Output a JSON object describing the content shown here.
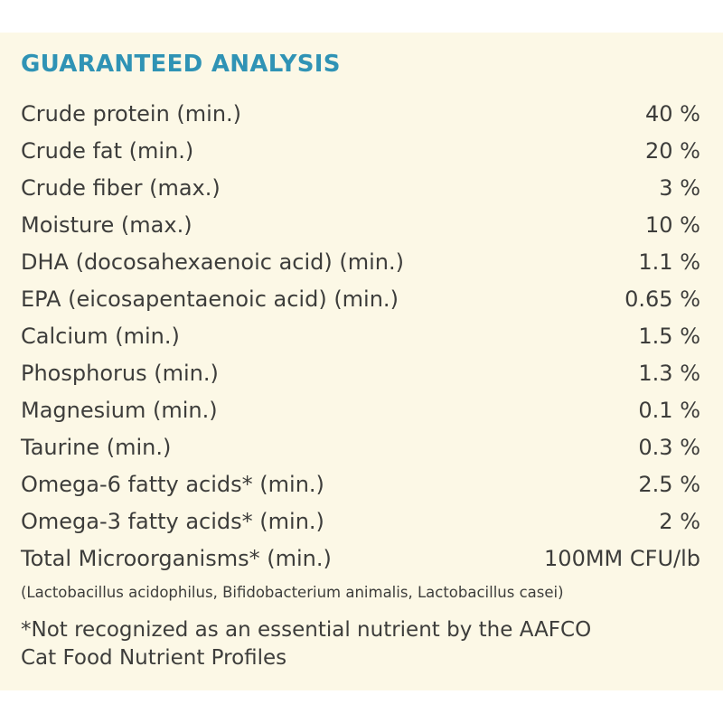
{
  "title": "GUARANTEED ANALYSIS",
  "rows": [
    {
      "nutrient": "Crude protein (min.)",
      "amount": "40 %"
    },
    {
      "nutrient": "Crude fat (min.)",
      "amount": "20 %"
    },
    {
      "nutrient": "Crude fiber (max.)",
      "amount": "3 %"
    },
    {
      "nutrient": "Moisture (max.)",
      "amount": "10 %"
    },
    {
      "nutrient": "DHA (docosahexaenoic acid) (min.)",
      "amount": "1.1 %"
    },
    {
      "nutrient": "EPA (eicosapentaenoic acid) (min.)",
      "amount": "0.65 %"
    },
    {
      "nutrient": "Calcium (min.)",
      "amount": "1.5 %"
    },
    {
      "nutrient": "Phosphorus (min.)",
      "amount": "1.3 %"
    },
    {
      "nutrient": "Magnesium (min.)",
      "amount": "0.1 %"
    },
    {
      "nutrient": "Taurine (min.)",
      "amount": "0.3 %"
    },
    {
      "nutrient": "Omega-6 fatty acids* (min.)",
      "amount": "2.5 %"
    },
    {
      "nutrient": "Omega-3 fatty acids* (min.)",
      "amount": "2 %"
    },
    {
      "nutrient": "Total Microorganisms* (min.)",
      "amount": "100MM CFU/lb"
    }
  ],
  "microorganisms_note": "(Lactobacillus acidophilus, Bifidobacterium animalis, Lactobacillus casei)",
  "footnote": {
    "line1": "*Not recognized as an essential nutrient by the AAFCO",
    "line2": "Cat Food Nutrient Profiles"
  },
  "colors": {
    "background": "#fcf8e6",
    "heading": "#2f93b5",
    "text": "#3d3d3b"
  }
}
